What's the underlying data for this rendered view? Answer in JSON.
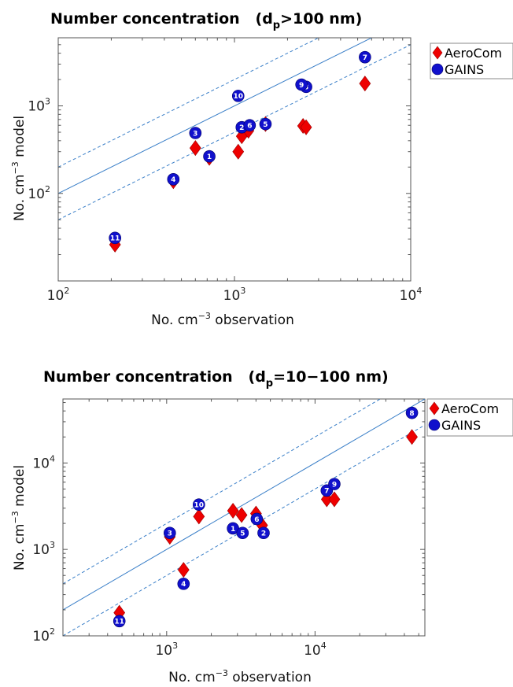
{
  "colors": {
    "aerocom": "#ee0000",
    "gains": "#1010cc",
    "one_to_one_line": "#3a7fc8",
    "axis": "#555555"
  },
  "chart_data": [
    {
      "type": "scatter",
      "title_prefix": "Number concentration",
      "title_dp": "(d",
      "title_sub": "p",
      "title_range": ">100 nm)",
      "xlabel_pre": "No. cm",
      "xlabel_sup": "−3",
      "xlabel_post": " observation",
      "ylabel_pre": "No. cm",
      "ylabel_sup": "−3",
      "ylabel_post": " model",
      "xscale": "log",
      "yscale": "log",
      "xlim": [
        100,
        10000
      ],
      "ylim": [
        10,
        6000
      ],
      "xticks": [
        {
          "base": "10",
          "exp": "2",
          "value": 100
        },
        {
          "base": "10",
          "exp": "3",
          "value": 1000
        },
        {
          "base": "10",
          "exp": "4",
          "value": 10000
        }
      ],
      "yticks": [
        {
          "base": "10",
          "exp": "2",
          "value": 100
        },
        {
          "base": "10",
          "exp": "3",
          "value": 1000
        }
      ],
      "reference_lines": [
        {
          "style": "solid",
          "factor": 1
        },
        {
          "style": "dashed",
          "factor": 2
        },
        {
          "style": "dashed",
          "factor": 0.5
        }
      ],
      "legend_position": "outside-top-right",
      "series": [
        {
          "name": "AeroCom",
          "marker": "diamond",
          "points": [
            {
              "x": 210,
              "y": 26
            },
            {
              "x": 450,
              "y": 138
            },
            {
              "x": 600,
              "y": 330
            },
            {
              "x": 720,
              "y": 255
            },
            {
              "x": 1050,
              "y": 300
            },
            {
              "x": 1100,
              "y": 450
            },
            {
              "x": 1200,
              "y": 520
            },
            {
              "x": 1500,
              "y": 620
            },
            {
              "x": 2450,
              "y": 590
            },
            {
              "x": 2550,
              "y": 570
            },
            {
              "x": 5500,
              "y": 1800
            }
          ]
        },
        {
          "name": "GAINS",
          "marker": "circle",
          "points": [
            {
              "label": "1",
              "x": 720,
              "y": 265
            },
            {
              "label": "2",
              "x": 1100,
              "y": 570
            },
            {
              "label": "3",
              "x": 600,
              "y": 490
            },
            {
              "label": "4",
              "x": 450,
              "y": 145
            },
            {
              "label": "5",
              "x": 1500,
              "y": 620
            },
            {
              "label": "6",
              "x": 1220,
              "y": 600
            },
            {
              "label": "7",
              "x": 5500,
              "y": 3600
            },
            {
              "label": "8",
              "x": 2550,
              "y": 1650
            },
            {
              "label": "9",
              "x": 2400,
              "y": 1750
            },
            {
              "label": "10",
              "x": 1050,
              "y": 1300
            },
            {
              "label": "11",
              "x": 210,
              "y": 31
            }
          ]
        }
      ]
    },
    {
      "type": "scatter",
      "title_prefix": "Number concentration",
      "title_dp": "(d",
      "title_sub": "p",
      "title_range": "=10−100 nm)",
      "xlabel_pre": "No. cm",
      "xlabel_sup": "−3",
      "xlabel_post": " observation",
      "ylabel_pre": "No. cm",
      "ylabel_sup": "−3",
      "ylabel_post": " model",
      "xscale": "log",
      "yscale": "log",
      "xlim": [
        200,
        55000
      ],
      "ylim": [
        100,
        55000
      ],
      "xticks": [
        {
          "base": "10",
          "exp": "3",
          "value": 1000
        },
        {
          "base": "10",
          "exp": "4",
          "value": 10000
        }
      ],
      "yticks": [
        {
          "base": "10",
          "exp": "2",
          "value": 100
        },
        {
          "base": "10",
          "exp": "3",
          "value": 1000
        },
        {
          "base": "10",
          "exp": "4",
          "value": 10000
        }
      ],
      "reference_lines": [
        {
          "style": "solid",
          "factor": 1
        },
        {
          "style": "dashed",
          "factor": 2
        },
        {
          "style": "dashed",
          "factor": 0.5
        }
      ],
      "legend_position": "outside-top-right",
      "series": [
        {
          "name": "AeroCom",
          "marker": "diamond",
          "points": [
            {
              "x": 480,
              "y": 185
            },
            {
              "x": 1050,
              "y": 1400
            },
            {
              "x": 1300,
              "y": 580
            },
            {
              "x": 1650,
              "y": 2400
            },
            {
              "x": 2800,
              "y": 2800
            },
            {
              "x": 3200,
              "y": 2500
            },
            {
              "x": 4000,
              "y": 2600
            },
            {
              "x": 4400,
              "y": 1900
            },
            {
              "x": 12000,
              "y": 3800
            },
            {
              "x": 13500,
              "y": 3800
            },
            {
              "x": 45000,
              "y": 20000
            }
          ]
        },
        {
          "name": "GAINS",
          "marker": "circle",
          "points": [
            {
              "label": "1",
              "x": 2800,
              "y": 1750
            },
            {
              "label": "2",
              "x": 4500,
              "y": 1550
            },
            {
              "label": "3",
              "x": 1050,
              "y": 1550
            },
            {
              "label": "4",
              "x": 1300,
              "y": 400
            },
            {
              "label": "5",
              "x": 3250,
              "y": 1550
            },
            {
              "label": "6",
              "x": 4050,
              "y": 2250
            },
            {
              "label": "7",
              "x": 12000,
              "y": 4800
            },
            {
              "label": "8",
              "x": 45000,
              "y": 38000
            },
            {
              "label": "9",
              "x": 13500,
              "y": 5700
            },
            {
              "label": "10",
              "x": 1650,
              "y": 3300
            },
            {
              "label": "11",
              "x": 480,
              "y": 148
            }
          ]
        }
      ]
    }
  ]
}
